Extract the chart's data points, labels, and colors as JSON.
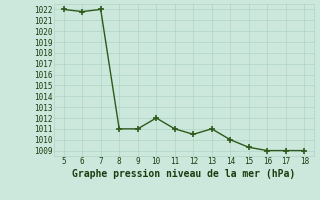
{
  "x": [
    5,
    6,
    7,
    8,
    9,
    10,
    11,
    12,
    13,
    14,
    15,
    16,
    17,
    18
  ],
  "y": [
    1022,
    1021.8,
    1022,
    1011,
    1011,
    1012,
    1011,
    1010.5,
    1011,
    1010,
    1009.3,
    1009,
    1009,
    1009
  ],
  "line_color": "#2d5a1b",
  "marker": "+",
  "marker_size": 4,
  "marker_linewidth": 1.2,
  "line_width": 1.0,
  "xlim": [
    4.5,
    18.5
  ],
  "ylim": [
    1008.5,
    1022.5
  ],
  "xticks": [
    5,
    6,
    7,
    8,
    9,
    10,
    11,
    12,
    13,
    14,
    15,
    16,
    17,
    18
  ],
  "yticks": [
    1009,
    1010,
    1011,
    1012,
    1013,
    1014,
    1015,
    1016,
    1017,
    1018,
    1019,
    1020,
    1021,
    1022
  ],
  "xlabel": "Graphe pression niveau de la mer (hPa)",
  "background_color": "#cce8dc",
  "grid_color": "#b0d4c4",
  "line_grid_color": "#c0ddd0",
  "tick_color": "#2d5a1b",
  "label_color": "#1a3d10",
  "tick_fontsize": 5.5,
  "xlabel_fontsize": 7.0
}
